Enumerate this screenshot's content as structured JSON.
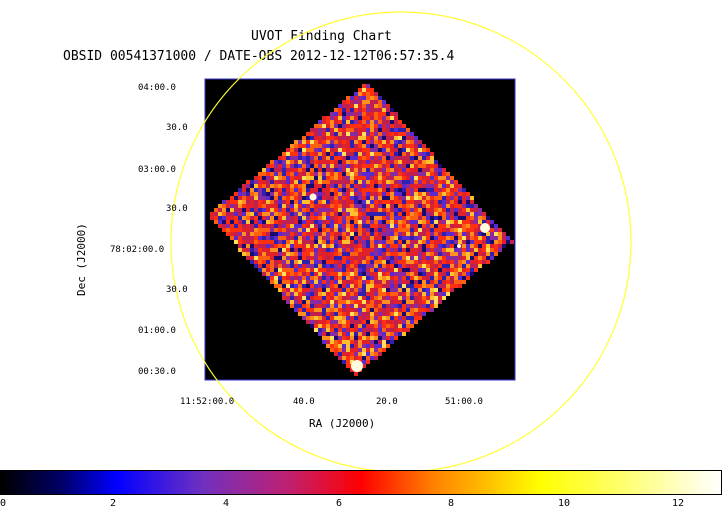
{
  "chart": {
    "title": "UVOT Finding Chart",
    "subtitle": "OBSID 00541371000 / DATE-OBS 2012-12-12T06:57:35.4",
    "xlabel": "RA (J2000)",
    "ylabel": "Dec (J2000)",
    "xticks": [
      "11:52:00.0",
      "40.0",
      "20.0",
      "51:00.0"
    ],
    "yticks": [
      "04:00.0",
      "30.0",
      "03:00.0",
      "30.0",
      "78:02:00.0",
      "30.0",
      "01:00.0",
      "00:30.0"
    ]
  },
  "colorbar": {
    "ticks": [
      "0",
      "2",
      "4",
      "6",
      "8",
      "10",
      "12"
    ],
    "range": [
      0,
      12.8
    ],
    "colormap": [
      "#000000",
      "#0000ff",
      "#ff0000",
      "#ffff00",
      "#ffffff"
    ]
  },
  "colors": {
    "circle": "#ffff33",
    "frame": "#3333cc",
    "background": "#000000"
  }
}
